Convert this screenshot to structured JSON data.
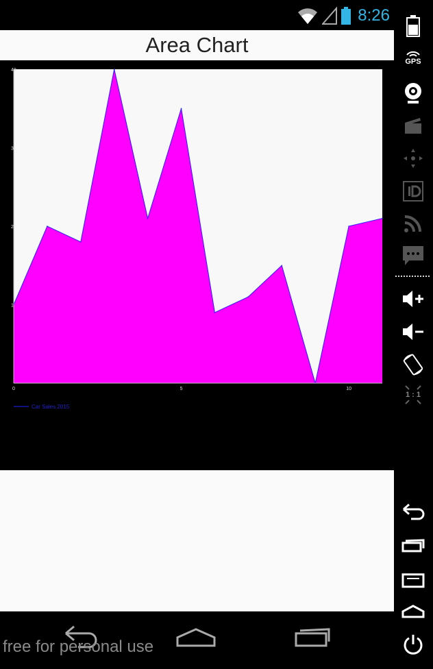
{
  "status_bar": {
    "time": "8:26",
    "icons": [
      "wifi-icon",
      "signal-icon",
      "battery-icon"
    ]
  },
  "app": {
    "title": "Area Chart"
  },
  "chart_data": {
    "type": "area",
    "x": [
      0,
      1,
      2,
      3,
      4,
      5,
      6,
      7,
      8,
      9,
      10,
      11
    ],
    "series": [
      {
        "name": "Car Sales 2015",
        "values": [
          10,
          20,
          18,
          40,
          21,
          35,
          9,
          11,
          15,
          0,
          20,
          21
        ],
        "color": "#ff00ff",
        "line_color": "#2222ff"
      }
    ],
    "xlim": [
      0,
      11
    ],
    "ylim": [
      0,
      40
    ],
    "xticks": [
      "0",
      "5",
      "10"
    ],
    "yticks": [
      "1",
      "2",
      "3",
      "40"
    ],
    "legend_position": "bottom-left",
    "plot_background": "#f8f8f8"
  },
  "watermark": "free for personal use",
  "nav": {
    "icons": [
      "back-icon",
      "home-icon",
      "recents-icon"
    ]
  },
  "emulator_panel": {
    "gps_label": "GPS",
    "rotate_label": "1 : 1",
    "icons": [
      "battery-icon",
      "gps-icon",
      "camera-icon",
      "video-icon",
      "dpad-icon",
      "id-icon",
      "rss-icon",
      "sms-icon",
      "volume-up-icon",
      "volume-down-icon",
      "rotate-icon",
      "scale-icon",
      "back-icon",
      "recents-icon",
      "menu-icon",
      "home-icon",
      "power-icon"
    ]
  },
  "colors": {
    "accent": "#33b5e5",
    "area_fill": "#ff00ff",
    "area_line": "#2222ff"
  }
}
